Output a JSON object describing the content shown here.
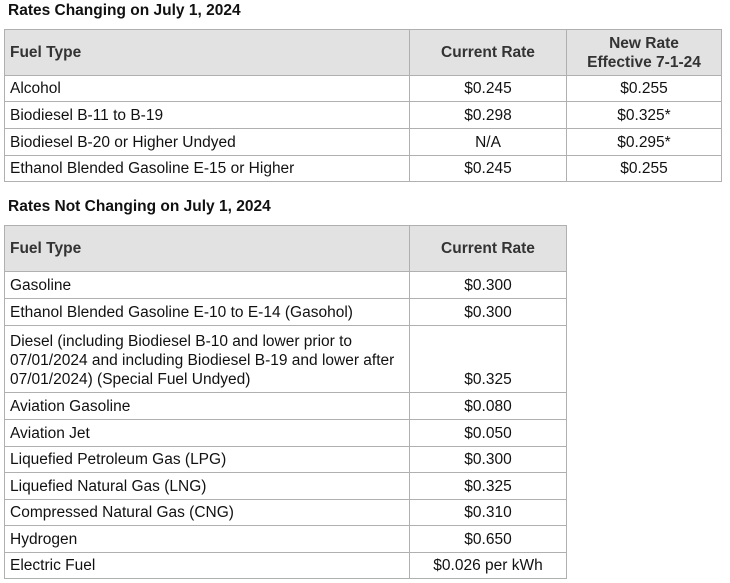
{
  "sections": [
    {
      "title": "Rates Changing on July 1, 2024",
      "table": {
        "header": [
          [
            "Fuel Type"
          ],
          [
            "Current Rate"
          ],
          [
            "New Rate",
            "Effective 7-1-24"
          ]
        ],
        "rows": [
          [
            "Alcohol",
            "$0.245",
            "$0.255"
          ],
          [
            "Biodiesel B-11 to B-19",
            "$0.298",
            "$0.325*"
          ],
          [
            "Biodiesel B-20 or Higher Undyed",
            "N/A",
            "$0.295*"
          ],
          [
            "Ethanol Blended Gasoline E-15 or Higher",
            "$0.245",
            "$0.255"
          ]
        ]
      }
    },
    {
      "title": "Rates Not Changing on July 1, 2024",
      "table": {
        "header": [
          [
            "Fuel Type"
          ],
          [
            "Current Rate"
          ]
        ],
        "rows": [
          [
            "Gasoline",
            "$0.300"
          ],
          [
            "Ethanol Blended Gasoline E-10 to E-14 (Gasohol)",
            "$0.300"
          ],
          [
            "Diesel (including Biodiesel B-10 and lower prior to 07/01/2024 and including Biodiesel B-19 and lower after 07/01/2024) (Special Fuel Undyed)",
            "$0.325"
          ],
          [
            "Aviation Gasoline",
            "$0.080"
          ],
          [
            "Aviation Jet",
            "$0.050"
          ],
          [
            "Liquefied Petroleum Gas (LPG)",
            "$0.300"
          ],
          [
            "Liquefied Natural Gas (LNG)",
            "$0.325"
          ],
          [
            "Compressed Natural Gas (CNG)",
            "$0.310"
          ],
          [
            "Hydrogen",
            "$0.650"
          ],
          [
            "Electric Fuel",
            "$0.026 per kWh"
          ]
        ]
      }
    }
  ]
}
